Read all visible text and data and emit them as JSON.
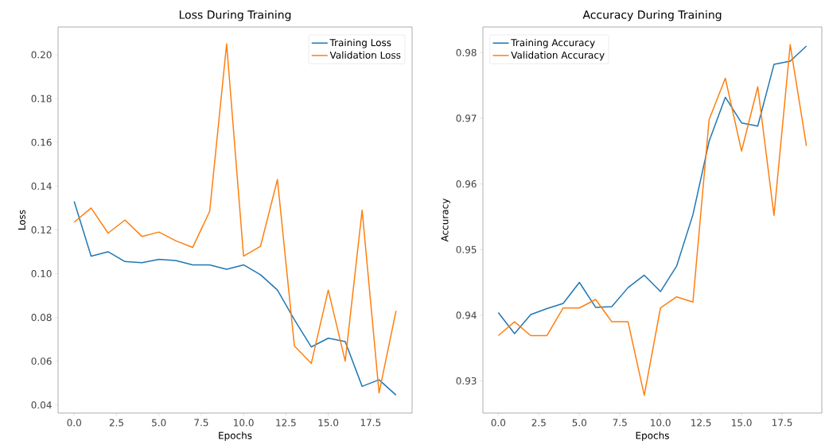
{
  "chart_data": [
    {
      "type": "line",
      "title": "Loss During Training",
      "xlabel": "Epochs",
      "ylabel": "Loss",
      "x": [
        0,
        1,
        2,
        3,
        4,
        5,
        6,
        7,
        8,
        9,
        10,
        11,
        12,
        13,
        14,
        15,
        16,
        17,
        18,
        19
      ],
      "series": [
        {
          "name": "Training Loss",
          "color": "#1f77b4",
          "values": [
            0.133,
            0.108,
            0.11,
            0.1055,
            0.105,
            0.1065,
            0.106,
            0.104,
            0.104,
            0.102,
            0.104,
            0.0995,
            0.0925,
            0.079,
            0.0665,
            0.0705,
            0.069,
            0.0485,
            0.0515,
            0.0445
          ]
        },
        {
          "name": "Validation Loss",
          "color": "#ff7f0e",
          "values": [
            0.1235,
            0.13,
            0.1185,
            0.1245,
            0.117,
            0.119,
            0.115,
            0.112,
            0.1285,
            0.205,
            0.108,
            0.1125,
            0.143,
            0.067,
            0.059,
            0.0925,
            0.06,
            0.129,
            0.0455,
            0.083
          ]
        }
      ],
      "xlim": [
        -0.95,
        19.95
      ],
      "ylim": [
        0.0363,
        0.2127
      ],
      "xticks": [
        {
          "value": 0,
          "label": "0.0"
        },
        2.5,
        {
          "value": 5,
          "label": "5.0"
        },
        7.5,
        {
          "value": 10,
          "label": "10.0"
        },
        12.5,
        {
          "value": 15,
          "label": "15.0"
        },
        17.5
      ],
      "yticks": [
        0.04,
        0.06,
        0.08,
        {
          "value": 0.1,
          "label": "0.10"
        },
        0.12,
        0.14,
        0.16,
        0.18,
        {
          "value": 0.2,
          "label": "0.20"
        }
      ],
      "legend": "top right"
    },
    {
      "type": "line",
      "title": "Accuracy During Training",
      "xlabel": "Epochs",
      "ylabel": "Accuracy",
      "x": [
        0,
        1,
        2,
        3,
        4,
        5,
        6,
        7,
        8,
        9,
        10,
        11,
        12,
        13,
        14,
        15,
        16,
        17,
        18,
        19
      ],
      "series": [
        {
          "name": "Training Accuracy",
          "color": "#1f77b4",
          "values": [
            0.9404,
            0.9372,
            0.9401,
            0.941,
            0.9418,
            0.945,
            0.9412,
            0.9413,
            0.9442,
            0.9461,
            0.9436,
            0.9475,
            0.9553,
            0.9665,
            0.9732,
            0.9693,
            0.9688,
            0.9782,
            0.9787,
            0.981
          ]
        },
        {
          "name": "Validation Accuracy",
          "color": "#ff7f0e",
          "values": [
            0.9369,
            0.939,
            0.9369,
            0.9369,
            0.9411,
            0.9411,
            0.9424,
            0.939,
            0.939,
            0.9278,
            0.9411,
            0.9428,
            0.942,
            0.9698,
            0.9761,
            0.965,
            0.9748,
            0.9552,
            0.9812,
            0.9658
          ]
        }
      ],
      "xlim": [
        -0.95,
        19.95
      ],
      "ylim": [
        0.9251,
        0.9839
      ],
      "xticks": [
        {
          "value": 0,
          "label": "0.0"
        },
        2.5,
        {
          "value": 5,
          "label": "5.0"
        },
        7.5,
        {
          "value": 10,
          "label": "10.0"
        },
        12.5,
        {
          "value": 15,
          "label": "15.0"
        },
        17.5
      ],
      "yticks": [
        0.93,
        0.94,
        0.95,
        0.96,
        0.97,
        0.98
      ],
      "legend": "top left"
    }
  ]
}
